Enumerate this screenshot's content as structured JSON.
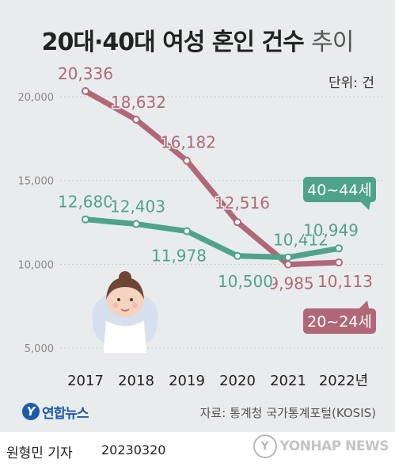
{
  "header": {
    "title_main": "20대·40대 여성 혼인 건수",
    "title_light": "추이",
    "unit": "단위: 건"
  },
  "chart_data": {
    "type": "line",
    "x": [
      "2017",
      "2018",
      "2019",
      "2020",
      "2021",
      "2022년"
    ],
    "series": [
      {
        "name": "20~24세",
        "color": "#b06878",
        "values": [
          20336,
          18632,
          16182,
          12516,
          9985,
          10113
        ],
        "labels": [
          "20,336",
          "18,632",
          "16,182",
          "12,516",
          "9,985",
          "10,113"
        ]
      },
      {
        "name": "40~44세",
        "color": "#4fa38a",
        "values": [
          12680,
          12403,
          11978,
          10500,
          10412,
          10949
        ],
        "labels": [
          "12,680",
          "12,403",
          "11,978",
          "10,500",
          "10,412",
          "10,949"
        ]
      }
    ],
    "yticks": [
      5000,
      10000,
      15000,
      20000
    ],
    "ytick_labels": [
      "5,000",
      "10,000",
      "15,000",
      "20,000"
    ],
    "ylim": [
      4000,
      21500
    ],
    "grid": true
  },
  "footer": {
    "logo": "연합뉴스",
    "source": "자료: 통계청 국가통계포털(KOSIS)",
    "author": "원형민 기자",
    "date": "20230320",
    "watermark": "YONHAP NEWS"
  }
}
